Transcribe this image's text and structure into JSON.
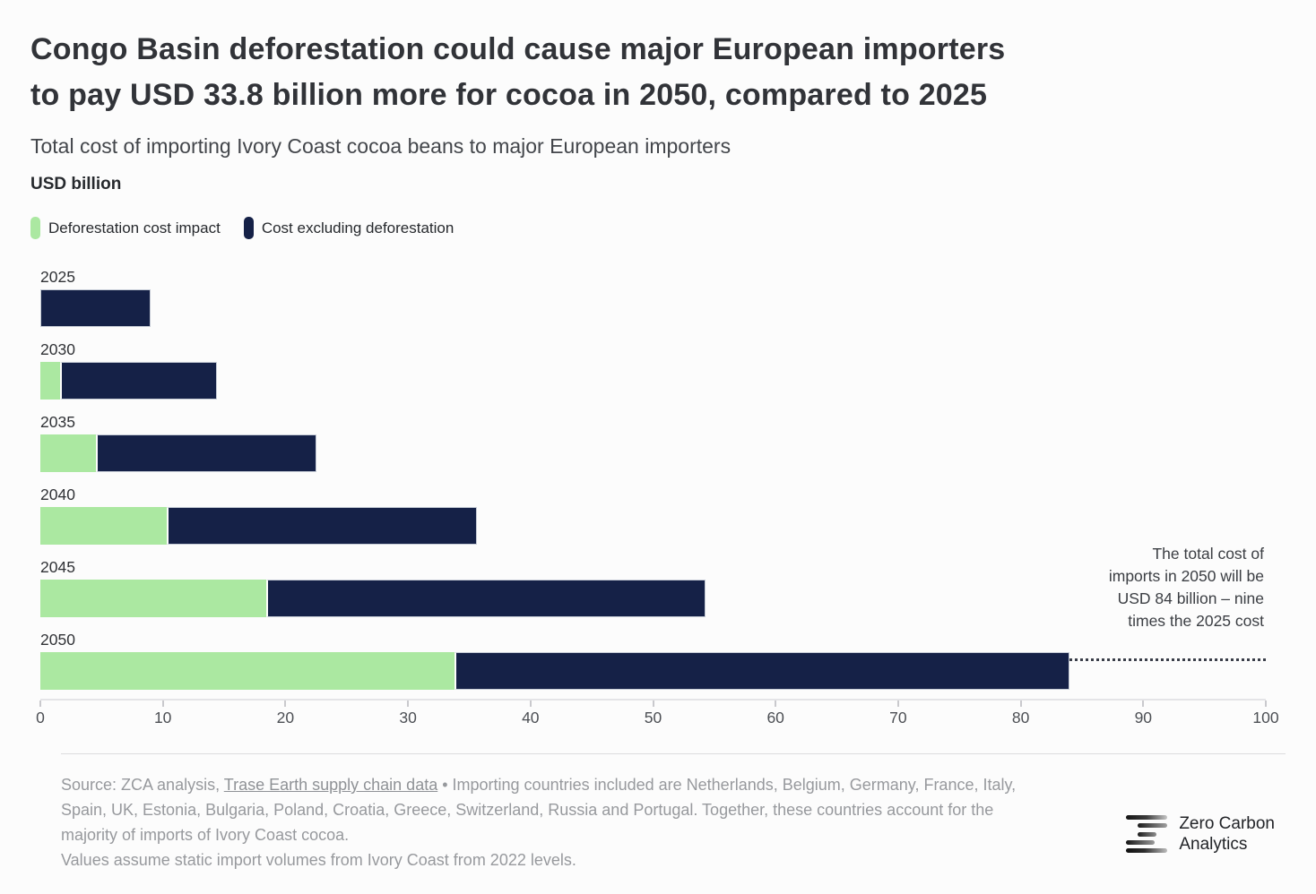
{
  "header": {
    "title_lines": [
      "Congo Basin deforestation could cause major European importers",
      "to pay USD 33.8 billion more for cocoa in 2050, compared to 2025"
    ],
    "subtitle": "Total cost of importing Ivory Coast cocoa beans to major European importers",
    "unit_label": "USD billion"
  },
  "legend": {
    "items": [
      {
        "label": "Deforestation cost impact",
        "color": "#abe8a1"
      },
      {
        "label": "Cost excluding deforestation",
        "color": "#152147"
      }
    ]
  },
  "chart_data": {
    "type": "bar",
    "orientation": "horizontal",
    "stacked": true,
    "title": "Total cost of importing Ivory Coast cocoa beans to major European importers",
    "unit": "USD billion",
    "categories": [
      "2025",
      "2030",
      "2035",
      "2040",
      "2045",
      "2050"
    ],
    "series": [
      {
        "name": "Deforestation cost impact",
        "color": "#abe8a1",
        "values": [
          0,
          1.6,
          4.5,
          10.3,
          18.4,
          33.8
        ]
      },
      {
        "name": "Cost excluding deforestation",
        "color": "#152147",
        "values": [
          9.0,
          12.8,
          18.0,
          25.3,
          35.9,
          50.2
        ]
      }
    ],
    "totals": [
      9.0,
      14.4,
      22.5,
      35.6,
      54.3,
      84.0
    ],
    "xlim": [
      0,
      100
    ],
    "xticks": [
      0,
      10,
      20,
      30,
      40,
      50,
      60,
      70,
      80,
      90,
      100
    ],
    "grid": false,
    "annotation": "The total cost of imports in 2050 will be USD 84 billion – nine times the 2025 cost"
  },
  "footer": {
    "source_prefix": "Source: ZCA analysis, ",
    "source_link": "Trase Earth supply chain data",
    "source_suffix": " • Importing countries included are Netherlands, Belgium, Germany, France, Italy, Spain, UK, Estonia, Bulgaria, Poland, Croatia, Greece, Switzerland, Russia and Portugal. Together, these countries account for the majority of imports of Ivory Coast cocoa.",
    "note": "Values assume static import volumes from Ivory Coast from 2022 levels.",
    "logo_line1": "Zero Carbon",
    "logo_line2": "Analytics"
  }
}
